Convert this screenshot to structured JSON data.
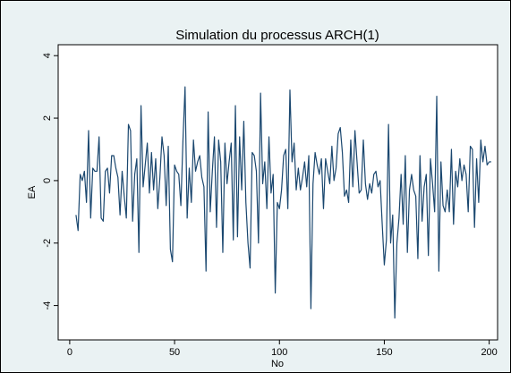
{
  "chart_data": {
    "type": "line",
    "title": "Simulation du processus ARCH(1)",
    "x_label": "No",
    "y_label": "EA",
    "color": "#1a476f",
    "x": [
      3,
      4,
      5,
      6,
      7,
      8,
      9,
      10,
      11,
      12,
      13,
      14,
      15,
      16,
      17,
      18,
      19,
      20,
      21,
      22,
      23,
      24,
      25,
      26,
      27,
      28,
      29,
      30,
      31,
      32,
      33,
      34,
      35,
      36,
      37,
      38,
      39,
      40,
      41,
      42,
      43,
      44,
      45,
      46,
      47,
      48,
      49,
      50,
      51,
      52,
      53,
      54,
      55,
      56,
      57,
      58,
      59,
      60,
      61,
      62,
      63,
      64,
      65,
      66,
      67,
      68,
      69,
      70,
      71,
      72,
      73,
      74,
      75,
      76,
      77,
      78,
      79,
      80,
      81,
      82,
      83,
      84,
      85,
      86,
      87,
      88,
      89,
      90,
      91,
      92,
      93,
      94,
      95,
      96,
      97,
      98,
      99,
      100,
      101,
      102,
      103,
      104,
      105,
      106,
      107,
      108,
      109,
      110,
      111,
      112,
      113,
      114,
      115,
      116,
      117,
      118,
      119,
      120,
      121,
      122,
      123,
      124,
      125,
      126,
      127,
      128,
      129,
      130,
      131,
      132,
      133,
      134,
      135,
      136,
      137,
      138,
      139,
      140,
      141,
      142,
      143,
      144,
      145,
      146,
      147,
      148,
      149,
      150,
      151,
      152,
      153,
      154,
      155,
      156,
      157,
      158,
      159,
      160,
      161,
      162,
      163,
      164,
      165,
      166,
      167,
      168,
      169,
      170,
      171,
      172,
      173,
      174,
      175,
      176,
      177,
      178,
      179,
      180,
      181,
      182,
      183,
      184,
      185,
      186,
      187,
      188,
      189,
      190,
      191,
      192,
      193,
      194,
      195,
      196,
      197,
      198,
      199,
      200,
      201
    ],
    "values": [
      -1.1,
      -1.6,
      0.2,
      0.0,
      0.3,
      -0.7,
      1.6,
      -1.2,
      0.4,
      0.3,
      0.3,
      1.4,
      -1.2,
      -1.3,
      0.3,
      0.4,
      -0.4,
      0.8,
      0.8,
      0.4,
      0.1,
      -1.1,
      0.3,
      -0.5,
      -1.2,
      1.8,
      1.6,
      -1.3,
      0.2,
      0.7,
      -2.3,
      2.4,
      -0.2,
      0.5,
      1.2,
      -0.4,
      0.9,
      -0.3,
      0.7,
      -0.9,
      0.1,
      1.4,
      0.8,
      -0.8,
      1.1,
      -2.2,
      -2.6,
      0.5,
      0.3,
      0.2,
      -0.8,
      1.3,
      3.0,
      -1.2,
      0.4,
      -0.7,
      1.3,
      0.3,
      0.6,
      0.8,
      0.1,
      -0.2,
      -2.9,
      2.2,
      -1.0,
      0.3,
      1.4,
      -1.5,
      1.3,
      0.6,
      -2.3,
      1.2,
      -0.1,
      0.6,
      1.2,
      -1.9,
      2.4,
      -1.8,
      1.4,
      -0.3,
      1.9,
      -0.7,
      -2.0,
      -2.8,
      0.9,
      0.8,
      0.3,
      -2.0,
      2.8,
      -0.1,
      0.6,
      -0.9,
      1.4,
      -0.4,
      0.2,
      -3.6,
      -0.7,
      -0.9,
      -0.3,
      0.8,
      1.0,
      -0.9,
      2.9,
      0.6,
      1.2,
      -0.3,
      0.4,
      -0.3,
      0.1,
      0.6,
      -0.2,
      0.8,
      -4.1,
      -0.1,
      0.9,
      0.5,
      0.2,
      0.7,
      -0.9,
      0.7,
      0.3,
      -0.1,
      1.1,
      0.0,
      0.4,
      1.5,
      1.7,
      0.9,
      -0.5,
      -0.3,
      -0.7,
      1.3,
      -0.2,
      1.6,
      0.6,
      -0.4,
      -0.3,
      1.3,
      -0.1,
      -0.6,
      -0.1,
      -0.4,
      0.2,
      0.3,
      -0.2,
      0.0,
      -1.4,
      -2.7,
      -1.9,
      1.8,
      -2.0,
      -1.1,
      -4.4,
      -2.0,
      -1.2,
      0.2,
      -1.4,
      0.8,
      -2.3,
      -0.3,
      0.2,
      -0.3,
      -0.5,
      -2.5,
      0.8,
      -1.3,
      -0.2,
      0.2,
      -2.4,
      0.7,
      -0.1,
      -1.0,
      2.7,
      -2.9,
      0.6,
      -0.8,
      -1.0,
      -0.3,
      -1.0,
      1.0,
      -1.4,
      0.3,
      -0.2,
      0.7,
      0.0,
      0.5,
      0.2,
      -1.0,
      1.1,
      1.0,
      -1.5,
      0.7,
      -0.7,
      1.3,
      0.6,
      1.1,
      0.5,
      0.6,
      0.6
    ],
    "xlim": [
      -5.5,
      204
    ],
    "ylim": [
      -5.1,
      4.35
    ],
    "xticks": [
      0,
      50,
      100,
      150,
      200
    ],
    "yticks": [
      -4,
      -2,
      0,
      2,
      4
    ]
  }
}
